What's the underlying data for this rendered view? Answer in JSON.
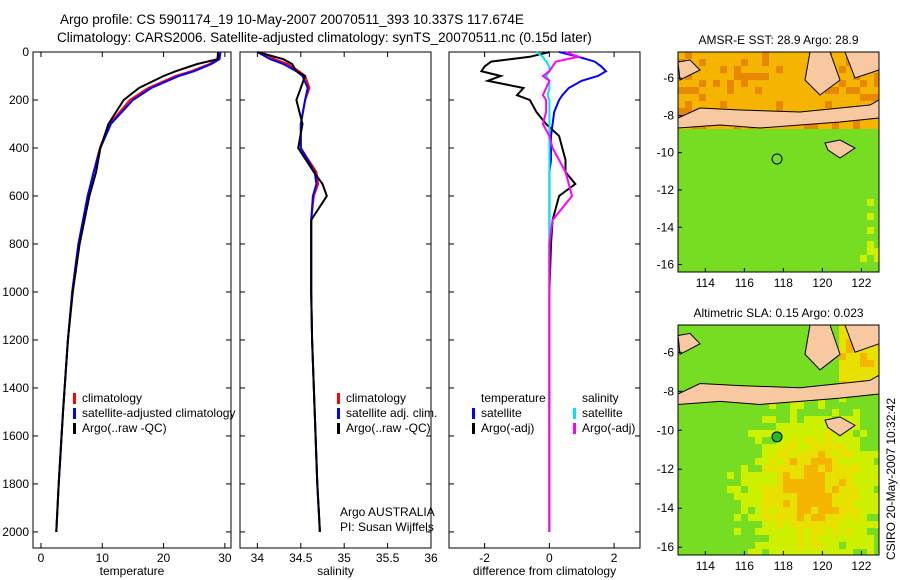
{
  "title_line1": "Argo profile: CS 5901174_19 10-May-2007 20070511_393 10.337S 117.674E",
  "title_line2": "Climatology: CARS2006. Satellite-adjusted climatology: synTS_20070511.nc (0.15d later)",
  "credit": "CSIRO 20-May-2007 10:32:42",
  "colors": {
    "climatology": "#ff0000",
    "satellite": "#0000ff",
    "argo": "#000000",
    "sal_satellite": "#00e5ee",
    "sal_argo": "#ff00ff",
    "land": "#f8c8a0"
  },
  "chart_data": [
    {
      "type": "line",
      "xlabel": "temperature",
      "xlim": [
        -1.3,
        31
      ],
      "ylim": [
        2067,
        0
      ],
      "xticks": [
        0,
        10,
        20,
        30
      ],
      "yticks": [
        0,
        200,
        400,
        600,
        800,
        1000,
        1200,
        1400,
        1600,
        1800,
        2000
      ],
      "depth": [
        0,
        30,
        50,
        80,
        100,
        150,
        200,
        300,
        400,
        500,
        600,
        800,
        1000,
        1200,
        1500,
        1800,
        2000
      ],
      "series": [
        {
          "name": "climatology",
          "color": "#ff0000",
          "values": [
            29,
            28.8,
            27.5,
            24.5,
            22,
            17.5,
            14.5,
            11.2,
            9.6,
            8.6,
            7.7,
            6.1,
            5.1,
            4.4,
            3.6,
            2.9,
            2.5
          ]
        },
        {
          "name": "satellite-adjusted climatology",
          "color": "#0000ff",
          "values": [
            29.3,
            29.1,
            27.8,
            25,
            22.5,
            18,
            15,
            11.4,
            9.7,
            8.6,
            7.6,
            6.1,
            5.1,
            4.4,
            3.6,
            2.9,
            2.5
          ]
        },
        {
          "name": "Argo(..raw -QC)",
          "color": "#000000",
          "values": [
            28.9,
            28.8,
            25.5,
            22,
            20,
            16,
            13.5,
            11,
            9.7,
            9,
            7.9,
            6.3,
            5.2,
            4.4,
            3.6,
            2.9,
            2.5
          ]
        }
      ],
      "legend": [
        "climatology",
        "satellite-adjusted climatology",
        "Argo(..raw -QC)"
      ]
    },
    {
      "type": "line",
      "xlabel": "salinity",
      "xlim": [
        33.8,
        36.0
      ],
      "ylim": [
        2067,
        0
      ],
      "xticks": [
        34,
        34.5,
        35,
        35.5,
        36
      ],
      "xticklabels": [
        "34",
        "34.5",
        "35",
        "35.5",
        "36"
      ],
      "depth": [
        0,
        30,
        50,
        80,
        100,
        150,
        200,
        300,
        400,
        500,
        550,
        600,
        700,
        800,
        1000,
        1200,
        1500,
        1800,
        2000
      ],
      "series": [
        {
          "name": "climatology",
          "color": "#ff0000",
          "values": [
            34.05,
            34.2,
            34.35,
            34.48,
            34.55,
            34.6,
            34.55,
            34.5,
            34.5,
            34.68,
            34.7,
            34.65,
            34.62,
            34.62,
            34.62,
            34.63,
            34.66,
            34.69,
            34.72
          ]
        },
        {
          "name": "satellite adj. clim.",
          "color": "#0000ff",
          "values": [
            34.0,
            34.15,
            34.3,
            34.45,
            34.52,
            34.58,
            34.55,
            34.5,
            34.5,
            34.66,
            34.68,
            34.64,
            34.62,
            34.62,
            34.62,
            34.63,
            34.66,
            34.69,
            34.72
          ]
        },
        {
          "name": "Argo(..raw -QC)",
          "color": "#000000",
          "values": [
            34.0,
            34.3,
            34.4,
            34.45,
            34.55,
            34.5,
            34.45,
            34.52,
            34.47,
            34.65,
            34.75,
            34.8,
            34.62,
            34.62,
            34.62,
            34.63,
            34.66,
            34.69,
            34.72
          ]
        }
      ],
      "legend": [
        "climatology",
        "satellite adj. clim.",
        "Argo(..raw -QC)"
      ],
      "annotation": [
        "Argo AUSTRALIA",
        "PI: Susan Wijffels"
      ]
    },
    {
      "type": "line",
      "xlabel": "difference from climatology",
      "xlim": [
        -3.1,
        2.8
      ],
      "ylim": [
        2067,
        0
      ],
      "xticks": [
        -2,
        0,
        2
      ],
      "xticklabels": [
        "-2",
        "0",
        "2"
      ],
      "depth": [
        0,
        20,
        40,
        60,
        80,
        100,
        120,
        150,
        180,
        200,
        250,
        300,
        350,
        400,
        450,
        500,
        550,
        600,
        700,
        800,
        1000,
        1200,
        1500,
        1800,
        2000
      ],
      "series": [
        {
          "name": "temperature satellite",
          "color": "#0000ff",
          "values": [
            0.3,
            0.9,
            1.4,
            1.6,
            1.75,
            1.5,
            1.0,
            0.6,
            0.4,
            0.3,
            0.15,
            0.1,
            0.05,
            0.05,
            0.05,
            0.0,
            0.0,
            0.0,
            0.0,
            0.0,
            0.0,
            0.0,
            0.0,
            0.0,
            0.0
          ]
        },
        {
          "name": "temperature Argo(-adj)",
          "color": "#000000",
          "values": [
            0.0,
            -0.6,
            -1.8,
            -2.0,
            -2.1,
            -1.5,
            -1.9,
            -0.8,
            -1.0,
            -0.6,
            -0.4,
            -0.1,
            0.3,
            0.4,
            0.5,
            0.5,
            0.8,
            0.3,
            0.1,
            0.05,
            0.0,
            0.0,
            0.0,
            0.0,
            0.0
          ]
        },
        {
          "name": "salinity satellite",
          "color": "#00e5ee",
          "values": [
            -0.4,
            -0.2,
            -0.1,
            0.0,
            0.0,
            -0.1,
            0.0,
            0.0,
            -0.05,
            0.0,
            0.0,
            0.0,
            0.0,
            0.0,
            0.0,
            0.0,
            0.0,
            0.0,
            0.0,
            0.0,
            0.0,
            0.0,
            0.0,
            0.0,
            0.0
          ]
        },
        {
          "name": "salinity Argo(-adj)",
          "color": "#ff00ff",
          "values": [
            0.5,
            0.9,
            0.2,
            0.1,
            0.0,
            -0.2,
            0.0,
            -0.1,
            -0.2,
            -0.1,
            -0.1,
            -0.2,
            0.0,
            0.1,
            0.3,
            0.5,
            0.6,
            0.7,
            0.1,
            0.0,
            0.0,
            0.0,
            0.0,
            0.0,
            0.0
          ]
        }
      ],
      "legend_left_title": "temperature",
      "legend_right_title": "salinity",
      "legend": [
        "satellite",
        "Argo(-adj)",
        "satellite",
        "Argo(-adj)"
      ]
    },
    {
      "type": "heatmap",
      "title": "AMSR-E SST: 28.9 Argo: 28.9",
      "xlim": [
        112.6,
        122.9
      ],
      "ylim": [
        -16.4,
        -4.6
      ],
      "xticks": [
        114,
        116,
        118,
        120,
        122
      ],
      "yticks": [
        -6,
        -8,
        -10,
        -12,
        -14,
        -16
      ],
      "marker": [
        117.674,
        -10.337
      ]
    },
    {
      "type": "heatmap",
      "title": "Altimetric SLA: 0.15 Argo: 0.023",
      "xlim": [
        112.6,
        122.9
      ],
      "ylim": [
        -16.4,
        -4.6
      ],
      "xticks": [
        114,
        116,
        118,
        120,
        122
      ],
      "yticks": [
        -6,
        -8,
        -10,
        -12,
        -14,
        -16
      ],
      "marker": [
        117.674,
        -10.337
      ]
    }
  ]
}
